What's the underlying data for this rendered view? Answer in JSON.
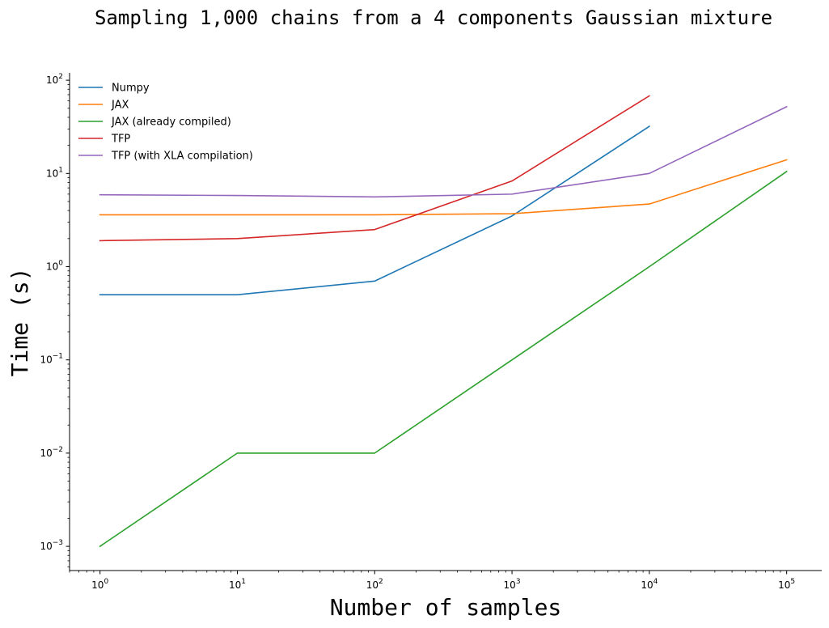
{
  "chart_data": {
    "type": "line",
    "title": "Sampling 1,000 chains from a 4 components Gaussian mixture",
    "xlabel": "Number of samples",
    "ylabel": "Time (s)",
    "xscale": "log",
    "yscale": "log",
    "xlim": [
      0.6,
      180000
    ],
    "ylim": [
      0.00055,
      120
    ],
    "grid": false,
    "legend_position": "top-left",
    "x_ticks": [
      {
        "base": "10",
        "exp": "0",
        "value": 1
      },
      {
        "base": "10",
        "exp": "1",
        "value": 10
      },
      {
        "base": "10",
        "exp": "2",
        "value": 100
      },
      {
        "base": "10",
        "exp": "3",
        "value": 1000
      },
      {
        "base": "10",
        "exp": "4",
        "value": 10000
      },
      {
        "base": "10",
        "exp": "5",
        "value": 100000
      }
    ],
    "y_ticks": [
      {
        "base": "10",
        "exp": "−3",
        "value": 0.001
      },
      {
        "base": "10",
        "exp": "−2",
        "value": 0.01
      },
      {
        "base": "10",
        "exp": "−1",
        "value": 0.1
      },
      {
        "base": "10",
        "exp": "0",
        "value": 1
      },
      {
        "base": "10",
        "exp": "1",
        "value": 10
      },
      {
        "base": "10",
        "exp": "2",
        "value": 100
      }
    ],
    "series": [
      {
        "name": "Numpy",
        "color": "#1f77b4",
        "x": [
          1,
          10,
          100,
          1000,
          10000
        ],
        "y": [
          0.5,
          0.5,
          0.7,
          3.5,
          32
        ]
      },
      {
        "name": "JAX",
        "color": "#ff7f0e",
        "x": [
          1,
          10,
          100,
          1000,
          10000,
          100000
        ],
        "y": [
          3.6,
          3.6,
          3.6,
          3.7,
          4.7,
          14
        ]
      },
      {
        "name": "JAX (already compiled)",
        "color": "#2ca02c",
        "x": [
          1,
          10,
          100,
          1000,
          10000,
          100000
        ],
        "y": [
          0.001,
          0.01,
          0.01,
          0.1,
          1.0,
          10.5
        ]
      },
      {
        "name": "TFP",
        "color": "#d62728",
        "x": [
          1,
          10,
          100,
          1000,
          10000
        ],
        "y": [
          1.9,
          2.0,
          2.5,
          8.3,
          68
        ]
      },
      {
        "name": "TFP (with XLA compilation)",
        "color": "#9467bd",
        "x": [
          1,
          10,
          100,
          1000,
          10000,
          100000
        ],
        "y": [
          5.9,
          5.8,
          5.6,
          6.0,
          10,
          52
        ]
      }
    ]
  }
}
